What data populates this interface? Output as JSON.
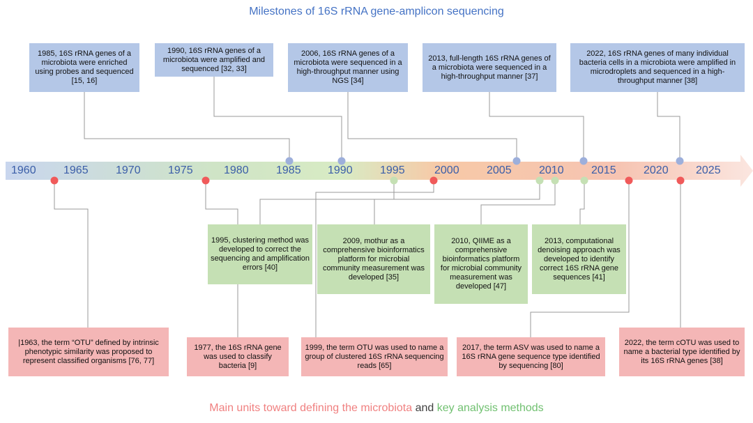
{
  "title": "Milestones of 16S rRNA gene-amplicon sequencing",
  "colors": {
    "title": "#4472c4",
    "year_text": "#3b5ea8",
    "blue_dot": "#9dafdb",
    "green_dot": "#c5e0b4",
    "red_dot": "#f05a5a",
    "blue_box": "#b4c7e7",
    "green_box": "#c5e0b4",
    "red_box": "#f4b6b6",
    "footer_red": "#f08080",
    "footer_gray": "#404040",
    "footer_green": "#70c070",
    "line": "#999999"
  },
  "years": [
    "1960",
    "1965",
    "1970",
    "1975",
    "1980",
    "1985",
    "1990",
    "1995",
    "2000",
    "2005",
    "2010",
    "2015",
    "2020",
    "2025"
  ],
  "top_boxes": [
    {
      "text": "1985, 16S rRNA genes of a microbiota were enriched using probes and sequenced [15, 16]"
    },
    {
      "text": "1990, 16S rRNA genes of a microbiota were amplified and sequenced [32, 33]"
    },
    {
      "text": "2006, 16S rRNA genes of a microbiota were sequenced in a high-throughput manner using NGS [34]"
    },
    {
      "text": "2013, full-length 16S rRNA genes of a microbiota were sequenced in a high-throughput manner [37]"
    },
    {
      "text": "2022, 16S rRNA genes of many individual bacteria cells in a microbiota were amplified in microdroplets and sequenced in a high-throughput manner [38]"
    }
  ],
  "middle_boxes": [
    {
      "text": "1995, clustering method was developed to correct the sequencing and amplification errors [40]"
    },
    {
      "text": "2009, mothur as a comprehensive bioinformatics platform for microbial community measurement was developed [35]"
    },
    {
      "text": "2010, QIIME as a comprehensive bioinformatics platform for microbial community measurement was developed [47]"
    },
    {
      "text": "2013, computational denoising approach was developed to identify correct 16S rRNA gene sequences [41]"
    }
  ],
  "bottom_boxes": [
    {
      "text": "|1963, the term “OTU” defined by intrinsic phenotypic similarity was proposed to represent classified organisms [76, 77]"
    },
    {
      "text": "1977, the 16S rRNA gene was used to classify bacteria [9]"
    },
    {
      "text": "1999, the term OTU was used to name a group of clustered 16S rRNA sequencing reads [65]"
    },
    {
      "text": "2017, the term ASV was used to name a 16S rRNA gene sequence type identified by sequencing [80]"
    },
    {
      "text": "2022, the term cOTU was used to name a bacterial type identified by its 16S rRNA genes [38]"
    }
  ],
  "footer": {
    "part1": "Main units toward defining the microbiota",
    "part2": " and ",
    "part3": "key analysis methods"
  }
}
